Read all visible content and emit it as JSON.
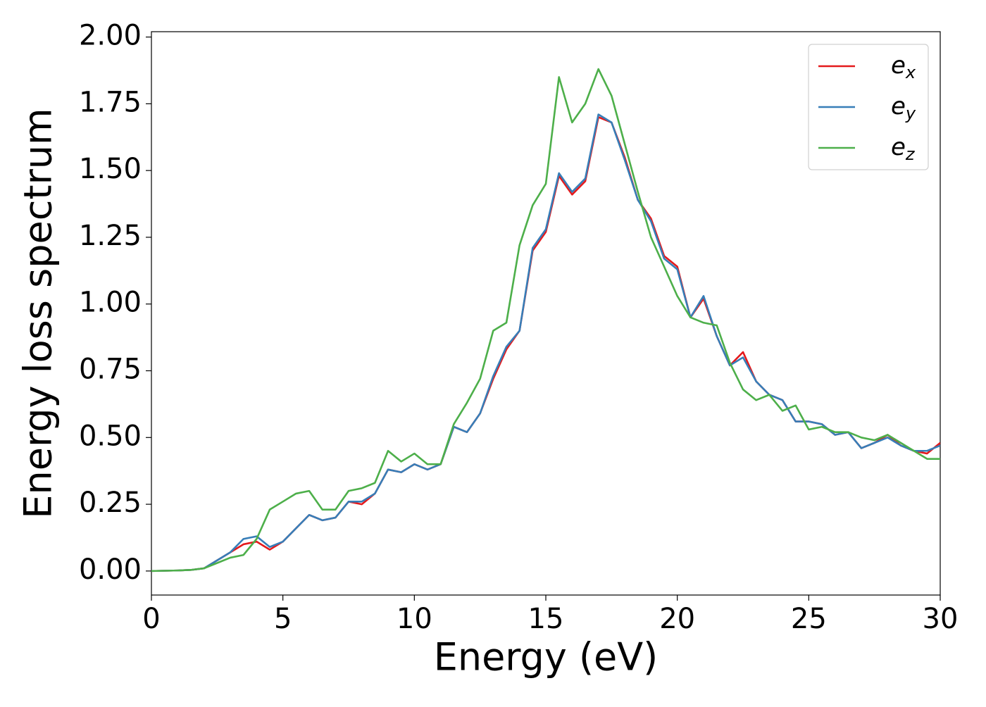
{
  "chart_data": {
    "type": "line",
    "xlabel": "Energy (eV)",
    "ylabel": "Energy loss spectrum",
    "x": [
      0,
      0.5,
      1,
      1.5,
      2,
      2.5,
      3,
      3.5,
      4,
      4.5,
      5,
      5.5,
      6,
      6.5,
      7,
      7.5,
      8,
      8.5,
      9,
      9.5,
      10,
      10.5,
      11,
      11.5,
      12,
      12.5,
      13,
      13.5,
      14,
      14.5,
      15,
      15.5,
      16,
      16.5,
      17,
      17.5,
      18,
      18.5,
      19,
      19.5,
      20,
      20.5,
      21,
      21.5,
      22,
      22.5,
      23,
      23.5,
      24,
      24.5,
      25,
      25.5,
      26,
      26.5,
      27,
      27.5,
      28,
      28.5,
      29,
      29.5,
      30
    ],
    "series": [
      {
        "name": "e_x",
        "color": "#e41a1c",
        "values": [
          0,
          0.001,
          0.002,
          0.004,
          0.01,
          0.04,
          0.07,
          0.1,
          0.11,
          0.08,
          0.11,
          0.16,
          0.21,
          0.19,
          0.2,
          0.26,
          0.25,
          0.29,
          0.38,
          0.37,
          0.4,
          0.38,
          0.4,
          0.54,
          0.52,
          0.59,
          0.72,
          0.83,
          0.9,
          1.2,
          1.27,
          1.48,
          1.41,
          1.46,
          1.7,
          1.68,
          1.55,
          1.39,
          1.32,
          1.18,
          1.14,
          0.95,
          1.02,
          0.88,
          0.77,
          0.82,
          0.71,
          0.66,
          0.64,
          0.56,
          0.56,
          0.55,
          0.51,
          0.52,
          0.46,
          0.48,
          0.51,
          0.47,
          0.45,
          0.44,
          0.48
        ]
      },
      {
        "name": "e_y",
        "color": "#377eb8",
        "values": [
          0,
          0.001,
          0.002,
          0.004,
          0.01,
          0.04,
          0.07,
          0.12,
          0.13,
          0.09,
          0.11,
          0.16,
          0.21,
          0.19,
          0.2,
          0.26,
          0.26,
          0.29,
          0.38,
          0.37,
          0.4,
          0.38,
          0.4,
          0.54,
          0.52,
          0.59,
          0.73,
          0.84,
          0.9,
          1.21,
          1.28,
          1.49,
          1.42,
          1.47,
          1.71,
          1.68,
          1.54,
          1.39,
          1.31,
          1.17,
          1.13,
          0.95,
          1.03,
          0.88,
          0.77,
          0.8,
          0.71,
          0.66,
          0.64,
          0.56,
          0.56,
          0.55,
          0.51,
          0.52,
          0.46,
          0.48,
          0.5,
          0.47,
          0.45,
          0.45,
          0.47
        ]
      },
      {
        "name": "e_z",
        "color": "#4daf4a",
        "values": [
          0,
          0.001,
          0.002,
          0.004,
          0.01,
          0.03,
          0.05,
          0.06,
          0.12,
          0.23,
          0.26,
          0.29,
          0.3,
          0.23,
          0.23,
          0.3,
          0.31,
          0.33,
          0.45,
          0.41,
          0.44,
          0.4,
          0.4,
          0.55,
          0.63,
          0.72,
          0.9,
          0.93,
          1.22,
          1.37,
          1.45,
          1.85,
          1.68,
          1.75,
          1.88,
          1.78,
          1.6,
          1.42,
          1.25,
          1.14,
          1.03,
          0.95,
          0.93,
          0.92,
          0.78,
          0.68,
          0.64,
          0.66,
          0.6,
          0.62,
          0.53,
          0.54,
          0.52,
          0.52,
          0.5,
          0.49,
          0.51,
          0.48,
          0.45,
          0.42,
          0.42
        ]
      }
    ],
    "xlim": [
      0,
      30
    ],
    "xticks": [
      0,
      5,
      10,
      15,
      20,
      25,
      30
    ],
    "ylim": [
      -0.09,
      2.02
    ],
    "yticks": [
      {
        "value": 0,
        "label": "0.00"
      },
      {
        "value": 0.25,
        "label": "0.25"
      },
      {
        "value": 0.5,
        "label": "0.50"
      },
      {
        "value": 0.75,
        "label": "0.75"
      },
      {
        "value": 1,
        "label": "1.00"
      },
      {
        "value": 1.25,
        "label": "1.25"
      },
      {
        "value": 1.5,
        "label": "1.50"
      },
      {
        "value": 1.75,
        "label": "1.75"
      },
      {
        "value": 2,
        "label": "2.00"
      }
    ],
    "legend": "upper right",
    "grid": false
  }
}
